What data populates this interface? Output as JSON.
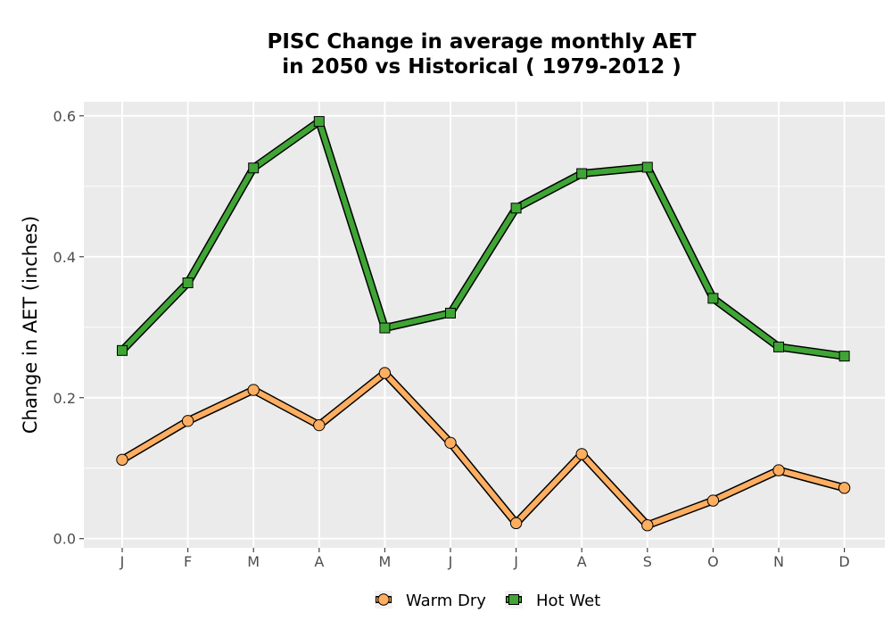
{
  "chart_data": {
    "type": "line",
    "title_lines": [
      "PISC  Change in average monthly AET",
      "in 2050 vs Historical ( 1979-2012 )"
    ],
    "xlabel": "",
    "ylabel": "Change in AET (inches)",
    "categories": [
      "J",
      "F",
      "M",
      "A",
      "M",
      "J",
      "J",
      "A",
      "S",
      "O",
      "N",
      "D"
    ],
    "ylim": [
      -0.013,
      0.62
    ],
    "yticks": [
      0.0,
      0.2,
      0.4,
      0.6
    ],
    "ytick_labels": [
      "0.0",
      "0.2",
      "0.4",
      "0.6"
    ],
    "grid": true,
    "legend_position": "bottom",
    "series": [
      {
        "name": "Warm Dry",
        "marker": "circle",
        "color": "#fdae61",
        "values": [
          0.112,
          0.167,
          0.211,
          0.161,
          0.235,
          0.136,
          0.022,
          0.12,
          0.019,
          0.054,
          0.097,
          0.072
        ]
      },
      {
        "name": "Hot Wet",
        "marker": "square",
        "color": "#3fa535",
        "values": [
          0.267,
          0.363,
          0.526,
          0.592,
          0.299,
          0.32,
          0.469,
          0.518,
          0.527,
          0.341,
          0.272,
          0.259
        ]
      }
    ]
  }
}
